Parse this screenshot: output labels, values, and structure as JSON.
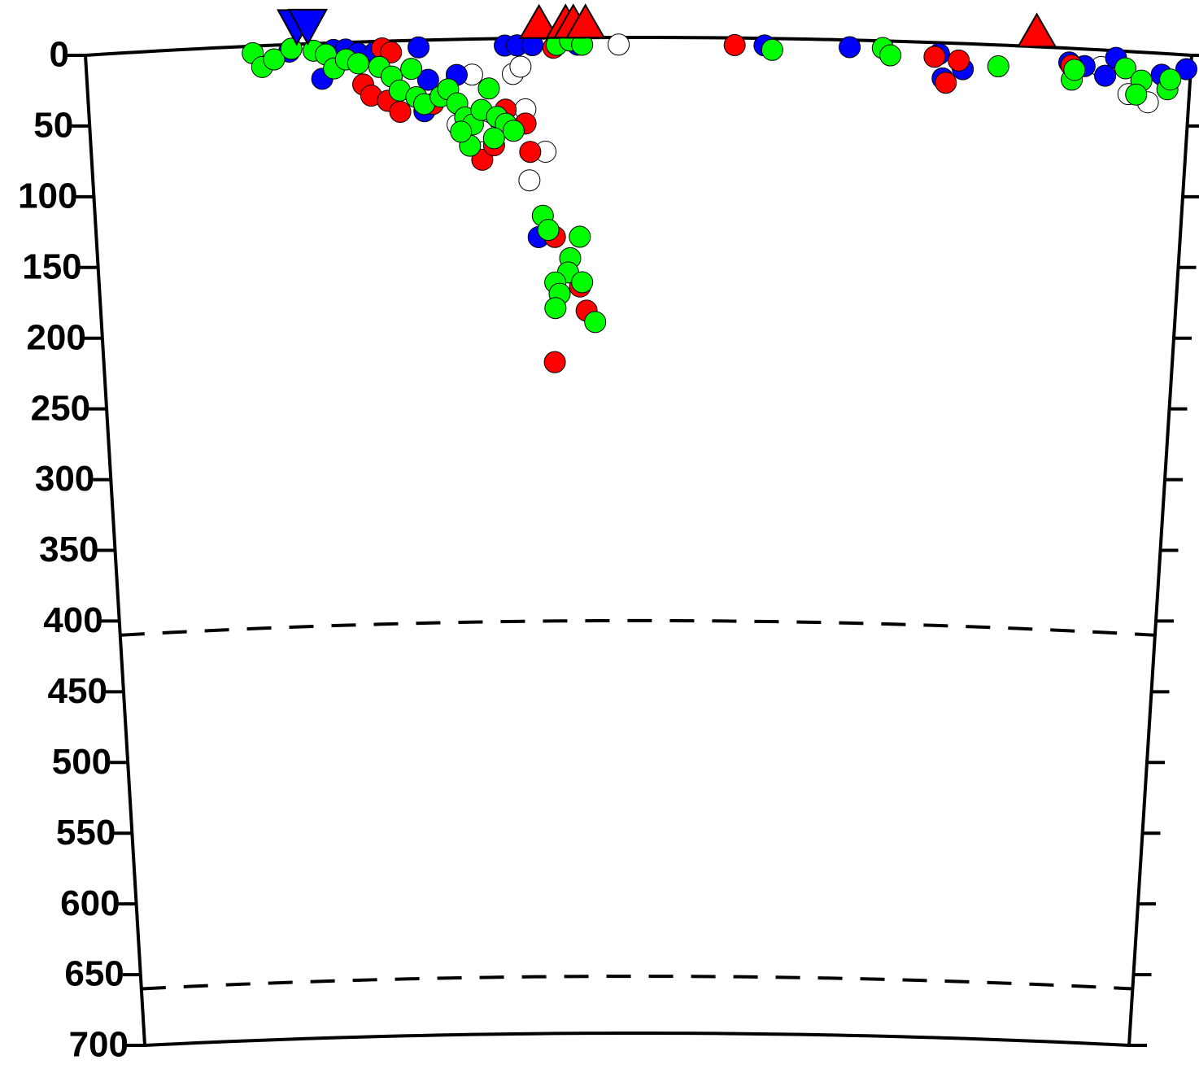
{
  "chart_data": {
    "type": "scatter",
    "ylim": [
      0,
      700
    ],
    "yticks": [
      0,
      50,
      100,
      150,
      200,
      250,
      300,
      350,
      400,
      450,
      500,
      550,
      600,
      650,
      700
    ],
    "xlim": [
      0,
      100
    ],
    "y_inverted": true,
    "reference_depths": [
      410,
      660
    ],
    "stations": [
      {
        "color": "#0000ff",
        "marker": "down",
        "x": [
          19.1,
          20.1
        ]
      },
      {
        "color": "#ff0000",
        "marker": "up",
        "x": [
          41.0,
          43.4,
          44.1,
          45.2,
          86.0
        ]
      }
    ],
    "series": [
      {
        "color": "#ffffff",
        "x": [
          34.9,
          38.6,
          39.3,
          39.7,
          41.5,
          40.0,
          48.2,
          91.9,
          94.5,
          96.3,
          33.5,
          35.7
        ],
        "values": [
          25,
          25,
          20,
          50,
          80,
          100,
          5,
          12,
          30,
          35,
          60,
          65
        ]
      },
      {
        "color": "#0000ff",
        "x": [
          18.4,
          21.3,
          22.4,
          23.5,
          24.6,
          26.1,
          30.1,
          30.9,
          33.5,
          30.5,
          37.9,
          39.0,
          40.4,
          44.5,
          61.4,
          69.1,
          77.2,
          79.4,
          77.6,
          89.0,
          90.4,
          92.3,
          93.2,
          97.4,
          99.6,
          40.8
        ],
        "values": [
          5,
          25,
          5,
          5,
          8,
          8,
          5,
          28,
          25,
          50,
          5,
          5,
          5,
          5,
          5,
          5,
          8,
          18,
          25,
          10,
          12,
          18,
          5,
          15,
          10,
          140
        ]
      },
      {
        "color": "#ff0000",
        "x": [
          26.8,
          27.6,
          25.0,
          25.7,
          27.2,
          28.3,
          31.3,
          37.9,
          39.7,
          40.1,
          35.7,
          36.8,
          42.3,
          58.7,
          76.8,
          79.0,
          77.9,
          89.2,
          42.3,
          44.6,
          45.2,
          42.2
        ],
        "values": [
          5,
          8,
          30,
          38,
          42,
          50,
          45,
          50,
          60,
          80,
          85,
          75,
          7,
          5,
          10,
          12,
          28,
          12,
          140,
          175,
          192,
          228
        ]
      },
      {
        "color": "#00ff00",
        "x": [
          15.1,
          15.9,
          17.0,
          18.6,
          20.6,
          21.7,
          22.4,
          23.5,
          24.6,
          26.5,
          27.6,
          28.3,
          29.4,
          29.8,
          30.5,
          32.0,
          32.7,
          33.5,
          34.2,
          34.9,
          35.7,
          36.4,
          37.1,
          37.9,
          38.6,
          34.6,
          36.8,
          33.8,
          42.6,
          43.8,
          44.9,
          62.1,
          72.1,
          72.8,
          82.6,
          89.3,
          89.5,
          94.1,
          95.6,
          95.2,
          98.0,
          98.2,
          41.2,
          41.7,
          44.6,
          43.7,
          43.5,
          42.3,
          44.8,
          42.7,
          42.3,
          46.0
        ],
        "values": [
          5,
          15,
          10,
          3,
          5,
          8,
          18,
          12,
          15,
          18,
          25,
          35,
          20,
          40,
          45,
          40,
          35,
          45,
          55,
          60,
          50,
          35,
          55,
          60,
          65,
          75,
          70,
          65,
          5,
          2,
          5,
          8,
          5,
          10,
          15,
          22,
          15,
          12,
          20,
          30,
          25,
          18,
          125,
          135,
          140,
          155,
          165,
          172,
          172,
          180,
          190,
          200
        ]
      }
    ]
  }
}
